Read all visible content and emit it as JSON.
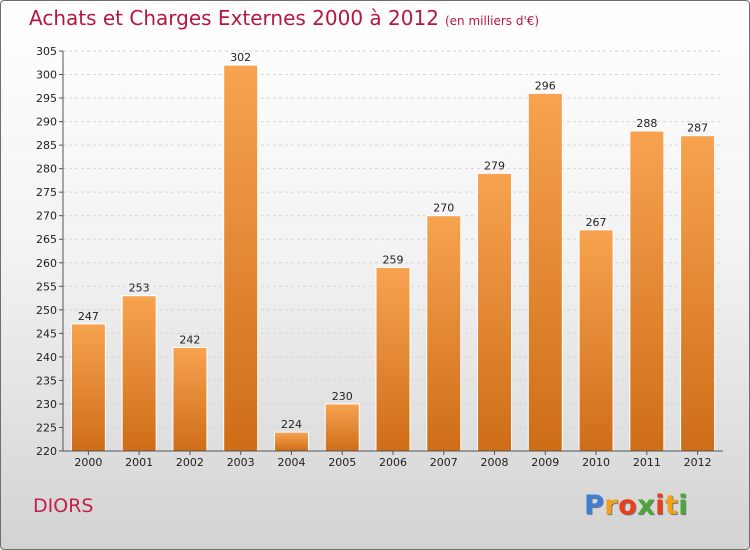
{
  "title": "Achats et Charges Externes 2000 à 2012",
  "subtitle": "(en milliers d'€)",
  "commune": "DIORS",
  "logo": {
    "letters": [
      "P",
      "r",
      "o",
      "x",
      "i",
      "t",
      "i"
    ]
  },
  "colors": {
    "title": "#b5183f",
    "bar_light": "#f7a350",
    "bar_dark": "#cf6d17",
    "logo_letters": [
      "#3d7fd6",
      "#f0a21d",
      "#e8401b",
      "#4aa836",
      "#e8401b",
      "#f0a21d",
      "#4aa836"
    ]
  },
  "chart_data": {
    "type": "bar",
    "categories": [
      "2000",
      "2001",
      "2002",
      "2003",
      "2004",
      "2005",
      "2006",
      "2007",
      "2008",
      "2009",
      "2010",
      "2011",
      "2012"
    ],
    "values": [
      247,
      253,
      242,
      302,
      224,
      230,
      259,
      270,
      279,
      296,
      267,
      288,
      287
    ],
    "ylim": [
      220,
      305
    ],
    "yticks": [
      220,
      225,
      230,
      235,
      240,
      245,
      250,
      255,
      260,
      265,
      270,
      275,
      280,
      285,
      290,
      295,
      300,
      305
    ],
    "grid": true,
    "data_labels": true
  }
}
